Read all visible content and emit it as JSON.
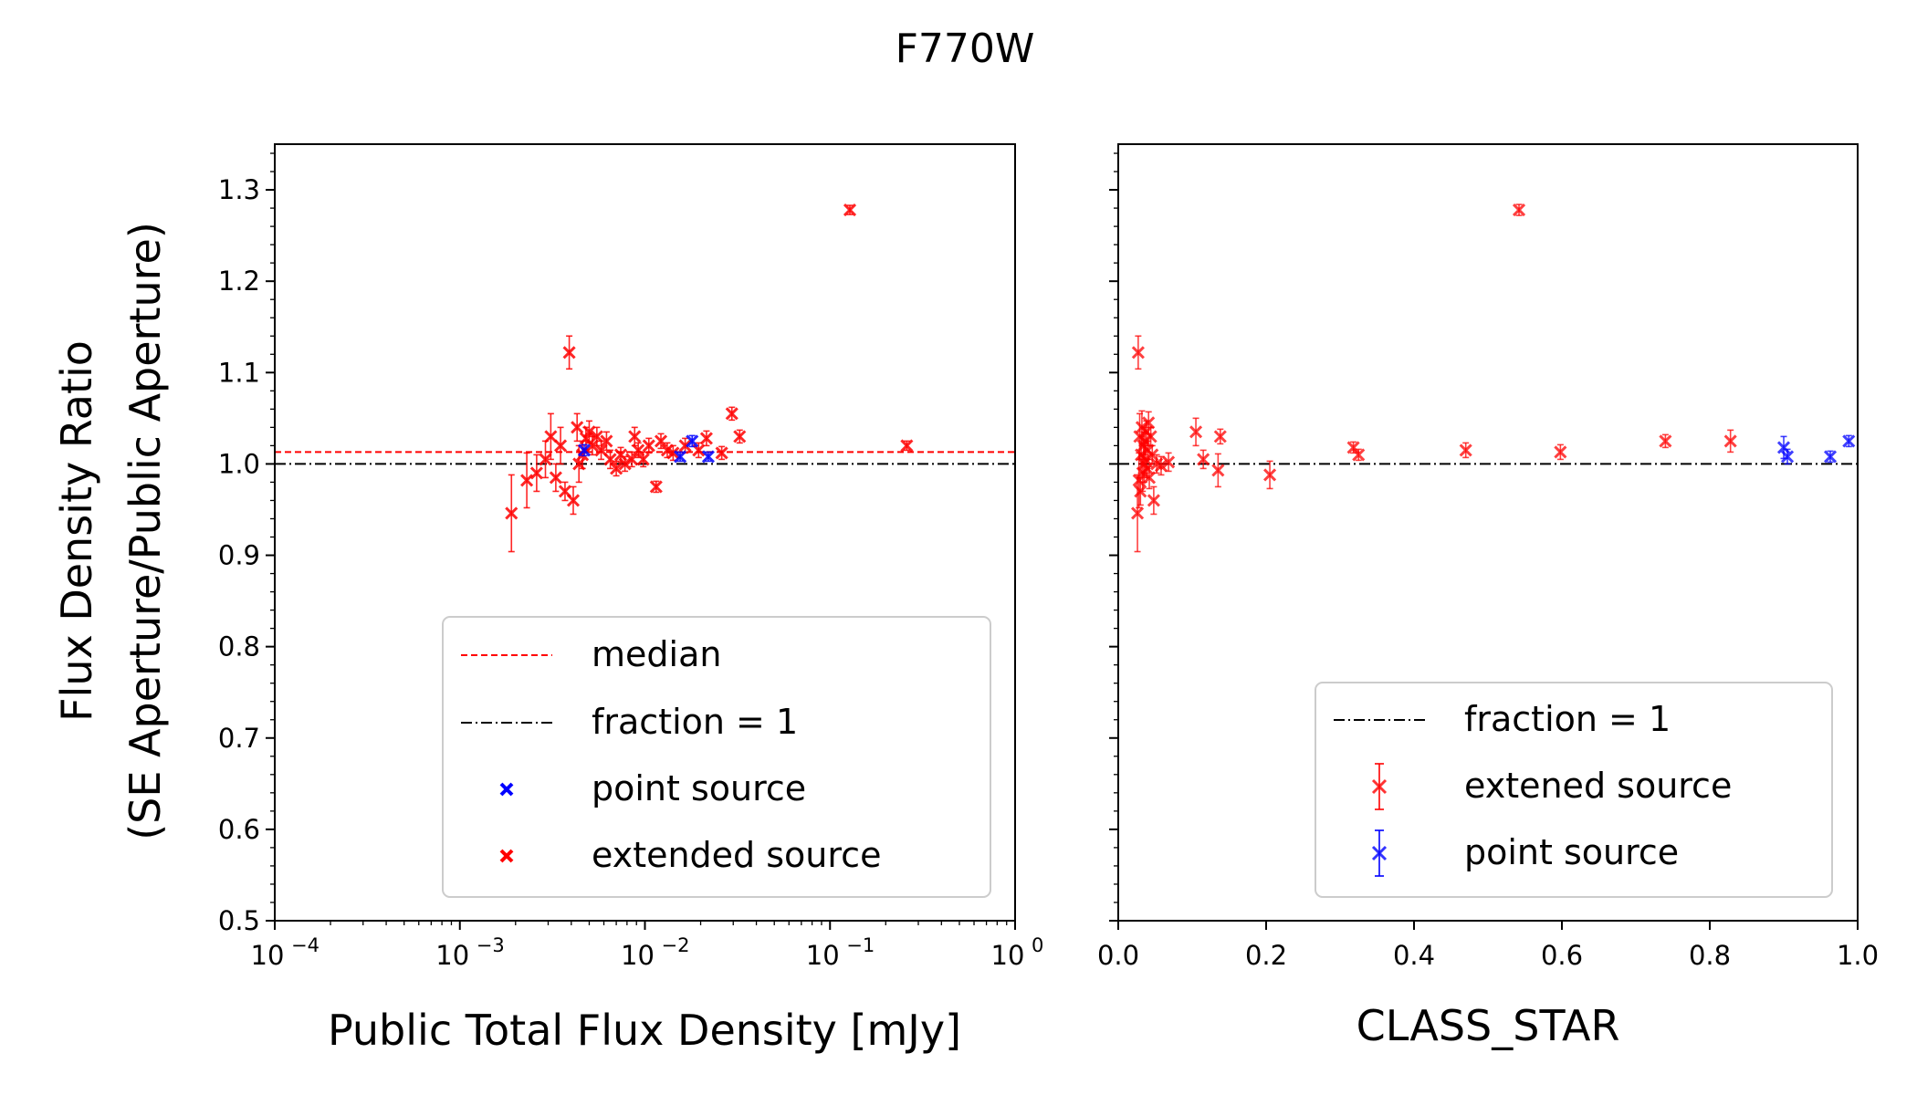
{
  "figure": {
    "title": "F770W",
    "ylabel_line1": "Flux Density Ratio",
    "ylabel_line2": "(SE Aperture/Public Aperture)"
  },
  "colors": {
    "extended": "#ff0000",
    "point": "#0000ff",
    "reference": "#000000",
    "median": "#ff0000"
  },
  "chart_data": [
    {
      "type": "scatter",
      "panel": "left",
      "xscale": "log",
      "xlabel": "Public Total Flux Density [mJy]",
      "ylabel": "Flux Density Ratio (SE Aperture/Public Aperture)",
      "xlim": [
        0.0001,
        1
      ],
      "ylim": [
        0.5,
        1.35
      ],
      "xticks": [
        {
          "value": 0.0001,
          "base": "10",
          "exp": "−4"
        },
        {
          "value": 0.001,
          "base": "10",
          "exp": "−3"
        },
        {
          "value": 0.01,
          "base": "10",
          "exp": "−2"
        },
        {
          "value": 0.1,
          "base": "10",
          "exp": "−1"
        },
        {
          "value": 1,
          "base": "10",
          "exp": "0"
        }
      ],
      "yticks": [
        "0.5",
        "0.6",
        "0.7",
        "0.8",
        "0.9",
        "1.0",
        "1.1",
        "1.2",
        "1.3"
      ],
      "median_value": 1.013,
      "reference_value": 1.0,
      "legend": {
        "position": "lower-right",
        "entries": [
          {
            "label": "median",
            "style": "dashed-red"
          },
          {
            "label": "fraction = 1",
            "style": "dashdot-black"
          },
          {
            "label": "point source",
            "style": "x-blue"
          },
          {
            "label": "extended source",
            "style": "x-red"
          }
        ]
      },
      "series": [
        {
          "name": "extended source",
          "color": "#ff0000",
          "points": [
            {
              "x": 0.0019,
              "y": 0.946,
              "err": 0.042
            },
            {
              "x": 0.0023,
              "y": 0.982,
              "err": 0.03
            },
            {
              "x": 0.0026,
              "y": 0.99,
              "err": 0.02
            },
            {
              "x": 0.0029,
              "y": 1.005,
              "err": 0.02
            },
            {
              "x": 0.0031,
              "y": 1.03,
              "err": 0.025
            },
            {
              "x": 0.0033,
              "y": 0.985,
              "err": 0.015
            },
            {
              "x": 0.0035,
              "y": 1.02,
              "err": 0.02
            },
            {
              "x": 0.0037,
              "y": 0.97,
              "err": 0.01
            },
            {
              "x": 0.0039,
              "y": 1.122,
              "err": 0.018
            },
            {
              "x": 0.0041,
              "y": 0.96,
              "err": 0.015
            },
            {
              "x": 0.0043,
              "y": 1.04,
              "err": 0.015
            },
            {
              "x": 0.0044,
              "y": 1.0,
              "err": 0.02
            },
            {
              "x": 0.0046,
              "y": 1.01,
              "err": 0.015
            },
            {
              "x": 0.0048,
              "y": 1.028,
              "err": 0.012
            },
            {
              "x": 0.005,
              "y": 1.035,
              "err": 0.012
            },
            {
              "x": 0.0052,
              "y": 1.02,
              "err": 0.01
            },
            {
              "x": 0.0055,
              "y": 1.03,
              "err": 0.01
            },
            {
              "x": 0.0058,
              "y": 1.015,
              "err": 0.01
            },
            {
              "x": 0.0062,
              "y": 1.025,
              "err": 0.01
            },
            {
              "x": 0.0065,
              "y": 1.005,
              "err": 0.01
            },
            {
              "x": 0.007,
              "y": 0.995,
              "err": 0.008
            },
            {
              "x": 0.0074,
              "y": 1.01,
              "err": 0.008
            },
            {
              "x": 0.0078,
              "y": 1.0,
              "err": 0.008
            },
            {
              "x": 0.0085,
              "y": 1.005,
              "err": 0.008
            },
            {
              "x": 0.0088,
              "y": 1.03,
              "err": 0.01
            },
            {
              "x": 0.0092,
              "y": 1.015,
              "err": 0.008
            },
            {
              "x": 0.0098,
              "y": 1.005,
              "err": 0.008
            },
            {
              "x": 0.0105,
              "y": 1.02,
              "err": 0.008
            },
            {
              "x": 0.0115,
              "y": 0.975,
              "err": 0.006
            },
            {
              "x": 0.0122,
              "y": 1.025,
              "err": 0.008
            },
            {
              "x": 0.0132,
              "y": 1.015,
              "err": 0.008
            },
            {
              "x": 0.0142,
              "y": 1.012,
              "err": 0.008
            },
            {
              "x": 0.0165,
              "y": 1.02,
              "err": 0.008
            },
            {
              "x": 0.0195,
              "y": 1.015,
              "err": 0.008
            },
            {
              "x": 0.0215,
              "y": 1.028,
              "err": 0.008
            },
            {
              "x": 0.026,
              "y": 1.012,
              "err": 0.007
            },
            {
              "x": 0.0295,
              "y": 1.055,
              "err": 0.007
            },
            {
              "x": 0.0325,
              "y": 1.03,
              "err": 0.007
            },
            {
              "x": 0.128,
              "y": 1.278,
              "err": 0.005
            },
            {
              "x": 0.26,
              "y": 1.02,
              "err": 0.005
            }
          ]
        },
        {
          "name": "point source",
          "color": "#0000ff",
          "points": [
            {
              "x": 0.0047,
              "y": 1.015,
              "err": 0.006
            },
            {
              "x": 0.0155,
              "y": 1.008,
              "err": 0.005
            },
            {
              "x": 0.018,
              "y": 1.025,
              "err": 0.006
            },
            {
              "x": 0.022,
              "y": 1.008,
              "err": 0.005
            }
          ]
        }
      ]
    },
    {
      "type": "scatter",
      "panel": "right",
      "xscale": "linear",
      "xlabel": "CLASS_STAR",
      "ylabel": "",
      "xlim": [
        0,
        1
      ],
      "ylim": [
        0.5,
        1.35
      ],
      "xticks": [
        "0.0",
        "0.2",
        "0.4",
        "0.6",
        "0.8",
        "1.0"
      ],
      "reference_value": 1.0,
      "legend": {
        "position": "lower-right",
        "entries": [
          {
            "label": "fraction = 1",
            "style": "dashdot-black"
          },
          {
            "label": "extened source",
            "style": "errorbar-red"
          },
          {
            "label": "point source",
            "style": "errorbar-blue"
          }
        ]
      },
      "series": [
        {
          "name": "extened source",
          "color": "#ff0000",
          "points": [
            {
              "x": 0.026,
              "y": 0.946,
              "err": 0.042
            },
            {
              "x": 0.027,
              "y": 1.122,
              "err": 0.018
            },
            {
              "x": 0.028,
              "y": 0.982,
              "err": 0.03
            },
            {
              "x": 0.029,
              "y": 1.03,
              "err": 0.025
            },
            {
              "x": 0.03,
              "y": 0.97,
              "err": 0.015
            },
            {
              "x": 0.031,
              "y": 1.01,
              "err": 0.02
            },
            {
              "x": 0.032,
              "y": 1.04,
              "err": 0.018
            },
            {
              "x": 0.033,
              "y": 0.99,
              "err": 0.02
            },
            {
              "x": 0.034,
              "y": 1.02,
              "err": 0.015
            },
            {
              "x": 0.035,
              "y": 1.0,
              "err": 0.02
            },
            {
              "x": 0.036,
              "y": 1.025,
              "err": 0.015
            },
            {
              "x": 0.037,
              "y": 1.005,
              "err": 0.015
            },
            {
              "x": 0.038,
              "y": 1.035,
              "err": 0.012
            },
            {
              "x": 0.039,
              "y": 0.995,
              "err": 0.01
            },
            {
              "x": 0.04,
              "y": 1.015,
              "err": 0.01
            },
            {
              "x": 0.041,
              "y": 1.045,
              "err": 0.012
            },
            {
              "x": 0.042,
              "y": 0.985,
              "err": 0.012
            },
            {
              "x": 0.044,
              "y": 1.03,
              "err": 0.01
            },
            {
              "x": 0.046,
              "y": 1.01,
              "err": 0.01
            },
            {
              "x": 0.048,
              "y": 0.96,
              "err": 0.015
            },
            {
              "x": 0.052,
              "y": 1.0,
              "err": 0.01
            },
            {
              "x": 0.058,
              "y": 0.998,
              "err": 0.01
            },
            {
              "x": 0.068,
              "y": 1.002,
              "err": 0.01
            },
            {
              "x": 0.105,
              "y": 1.035,
              "err": 0.015
            },
            {
              "x": 0.115,
              "y": 1.005,
              "err": 0.01
            },
            {
              "x": 0.135,
              "y": 0.993,
              "err": 0.018
            },
            {
              "x": 0.138,
              "y": 1.03,
              "err": 0.008
            },
            {
              "x": 0.205,
              "y": 0.988,
              "err": 0.015
            },
            {
              "x": 0.318,
              "y": 1.018,
              "err": 0.006
            },
            {
              "x": 0.325,
              "y": 1.01,
              "err": 0.006
            },
            {
              "x": 0.47,
              "y": 1.015,
              "err": 0.008
            },
            {
              "x": 0.542,
              "y": 1.278,
              "err": 0.006
            },
            {
              "x": 0.598,
              "y": 1.013,
              "err": 0.008
            },
            {
              "x": 0.74,
              "y": 1.025,
              "err": 0.007
            },
            {
              "x": 0.828,
              "y": 1.025,
              "err": 0.012
            }
          ]
        },
        {
          "name": "point source",
          "color": "#0000ff",
          "points": [
            {
              "x": 0.9,
              "y": 1.018,
              "err": 0.012
            },
            {
              "x": 0.905,
              "y": 1.008,
              "err": 0.008
            },
            {
              "x": 0.963,
              "y": 1.008,
              "err": 0.006
            },
            {
              "x": 0.988,
              "y": 1.025,
              "err": 0.006
            }
          ]
        }
      ]
    }
  ]
}
